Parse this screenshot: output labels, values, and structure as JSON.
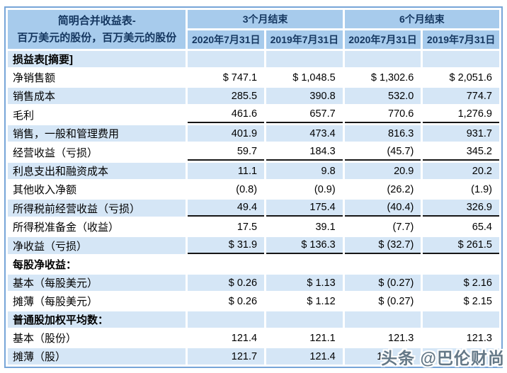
{
  "colors": {
    "header_bg": "#a7cbec",
    "header_text": "#14365f",
    "zebra_blue": "#d5e6f6",
    "table_border": "#77a5d8",
    "subtotal_line": "#161616"
  },
  "watermark": {
    "text": "头条 @巴伦财尚"
  },
  "table": {
    "corner_title_line1": "简明合并收益表-",
    "corner_title_line2": "百万美元的股份，百万美元的股份",
    "column_groups": [
      {
        "label": "3个月结束",
        "span": 2
      },
      {
        "label": "6个月结束",
        "span": 2
      }
    ],
    "date_headers": [
      "2020年7月31日",
      "2019年7月31日",
      "2020年7月31日",
      "2019年7月31日"
    ],
    "rows": [
      {
        "label": "损益表[摘要]",
        "bold": true,
        "values": [
          "",
          "",
          "",
          ""
        ]
      },
      {
        "label": "净销售额",
        "values": [
          "$ 747.1",
          "$ 1,048.5",
          "$ 1,302.6",
          "$ 2,051.6"
        ]
      },
      {
        "label": "销售成本",
        "values": [
          "285.5",
          "390.8",
          "532.0",
          "774.7"
        ]
      },
      {
        "label": "毛利",
        "subtotal_line": true,
        "values": [
          "461.6",
          "657.7",
          "770.6",
          "1,276.9"
        ]
      },
      {
        "label": "销售，一般和管理费用",
        "values": [
          "401.9",
          "473.4",
          "816.3",
          "931.7"
        ]
      },
      {
        "label": "经营收益（亏损）",
        "subtotal_line": true,
        "values": [
          "59.7",
          "184.3",
          "(45.7)",
          "345.2"
        ]
      },
      {
        "label": "利息支出和融资成本",
        "values": [
          "11.1",
          "9.8",
          "20.9",
          "20.2"
        ]
      },
      {
        "label": "其他收入净额",
        "values": [
          "(0.8)",
          "(0.9)",
          "(26.2)",
          "(1.9)"
        ]
      },
      {
        "label": "所得税前经营收益（亏损）",
        "subtotal_line": true,
        "values": [
          "49.4",
          "175.4",
          "(40.4)",
          "326.9"
        ]
      },
      {
        "label": "所得税准备金（收益）",
        "values": [
          "17.5",
          "39.1",
          "(7.7)",
          "65.4"
        ]
      },
      {
        "label": "净收益（亏损）",
        "subtotal_line": true,
        "values": [
          "$ 31.9",
          "$ 136.3",
          "$ (32.7)",
          "$ 261.5"
        ]
      },
      {
        "label": "每股净收益：",
        "bold": true,
        "values": [
          "",
          "",
          "",
          ""
        ]
      },
      {
        "label": "基本（每股美元）",
        "values": [
          "$ 0.26",
          "$ 1.13",
          "$ (0.27)",
          "$ 2.16"
        ]
      },
      {
        "label": "摊薄（每股美元）",
        "values": [
          "$ 0.26",
          "$ 1.12",
          "$ (0.27)",
          "$ 2.15"
        ]
      },
      {
        "label": "普通股加权平均数：",
        "bold": true,
        "values": [
          "",
          "",
          "",
          ""
        ]
      },
      {
        "label": "基本（股份）",
        "values": [
          "121.4",
          "121.1",
          "121.3",
          "121.3"
        ]
      },
      {
        "label": "摊薄（股）",
        "partial_cols": [
          2
        ],
        "values": [
          "121.7",
          "121.4",
          "12",
          ""
        ]
      }
    ]
  }
}
